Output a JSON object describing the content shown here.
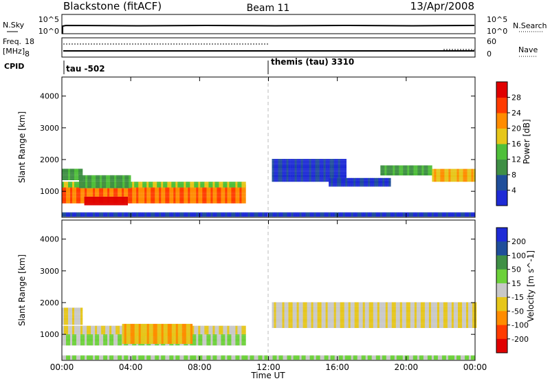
{
  "header": {
    "station": "Blackstone (fitACF)",
    "beam": "Beam 11",
    "date": "13/Apr/2008"
  },
  "nsky_panel": {
    "label": "N.Sky",
    "right_label": "N.Search",
    "left_ticks": [
      "10^5",
      "10^0"
    ],
    "right_ticks": [
      "10^5",
      "10^0"
    ]
  },
  "freq_panel": {
    "label_line1": "Freq.",
    "label_line2": "[MHz]",
    "right_label": "Nave",
    "left_ticks": [
      "18",
      "8"
    ],
    "right_ticks": [
      "60",
      "0"
    ]
  },
  "cpid_panel": {
    "label": "CPID",
    "modes": [
      {
        "text": "tau -502",
        "start_hour": 0
      },
      {
        "text": "themis (tau) 3310",
        "start_hour": 12
      }
    ]
  },
  "x_axis": {
    "label": "Time UT",
    "ticks": [
      "00:00",
      "04:00",
      "08:00",
      "12:00",
      "16:00",
      "20:00",
      "00:00"
    ],
    "range_hours": [
      0,
      24
    ]
  },
  "chart_data": [
    {
      "type": "heatmap",
      "name": "power",
      "ylabel": "Slant Range [km]",
      "ylim": [
        180,
        4600
      ],
      "y_ticks": [
        "1000",
        "2000",
        "3000",
        "4000"
      ],
      "y_tick_values": [
        1000,
        2000,
        3000,
        4000
      ],
      "colorbar": {
        "label": "Power [dB]",
        "ticks": [
          "4",
          "8",
          "12",
          "16",
          "20",
          "24",
          "28"
        ],
        "colors": [
          "#1e2bd6",
          "#1f4e9a",
          "#3f8f45",
          "#4fbf3a",
          "#e6c61a",
          "#ff8c00",
          "#ff3b00",
          "#e00000"
        ]
      },
      "bands": [
        {
          "t0": 0.0,
          "t1": 10.6,
          "r0": 620,
          "r1": 1200,
          "level": 5
        },
        {
          "t0": 1.3,
          "t1": 3.8,
          "r0": 560,
          "r1": 800,
          "level": 7
        },
        {
          "t0": 0.0,
          "t1": 10.6,
          "r0": 1120,
          "r1": 1300,
          "level": 3
        },
        {
          "t0": 0.0,
          "t1": 1.2,
          "r0": 1350,
          "r1": 1700,
          "level": 2
        },
        {
          "t0": 1.0,
          "t1": 4.0,
          "r0": 1100,
          "r1": 1500,
          "level": 2
        },
        {
          "t0": 12.2,
          "t1": 16.5,
          "r0": 1300,
          "r1": 2000,
          "level": 0
        },
        {
          "t0": 15.5,
          "t1": 19.0,
          "r0": 1150,
          "r1": 1400,
          "level": 0
        },
        {
          "t0": 18.5,
          "t1": 21.5,
          "r0": 1500,
          "r1": 1800,
          "level": 2
        },
        {
          "t0": 21.5,
          "t1": 24.0,
          "r0": 1300,
          "r1": 1700,
          "level": 4
        },
        {
          "t0": 0.0,
          "t1": 24.0,
          "r0": 200,
          "r1": 320,
          "level": 0
        }
      ]
    },
    {
      "type": "heatmap",
      "name": "velocity",
      "ylabel": "Slant Range [km]",
      "ylim": [
        180,
        4600
      ],
      "y_ticks": [
        "1000",
        "2000",
        "3000",
        "4000"
      ],
      "y_tick_values": [
        1000,
        2000,
        3000,
        4000
      ],
      "colorbar": {
        "label": "Velocity [m s^-1]",
        "ticks": [
          "200",
          "100",
          "50",
          "15",
          "-15",
          "-50",
          "-100",
          "-200"
        ],
        "colors": [
          "#1e2bd6",
          "#1f4e9a",
          "#3f8f45",
          "#6cd13a",
          "#c8c8c8",
          "#e6c61a",
          "#ff8c00",
          "#ff3b00",
          "#e00000"
        ]
      },
      "bands": [
        {
          "t0": 0.0,
          "t1": 10.6,
          "r0": 650,
          "r1": 1000,
          "level": 3
        },
        {
          "t0": 0.0,
          "t1": 10.6,
          "r0": 1000,
          "r1": 1250,
          "level": 4
        },
        {
          "t0": 3.5,
          "t1": 7.5,
          "r0": 700,
          "r1": 1300,
          "level": 5
        },
        {
          "t0": 0.0,
          "t1": 1.2,
          "r0": 1300,
          "r1": 1800,
          "level": 4
        },
        {
          "t0": 12.2,
          "t1": 24.0,
          "r0": 1200,
          "r1": 2000,
          "level": 4
        },
        {
          "t0": 0.0,
          "t1": 24.0,
          "r0": 200,
          "r1": 320,
          "level": 3
        }
      ]
    }
  ]
}
